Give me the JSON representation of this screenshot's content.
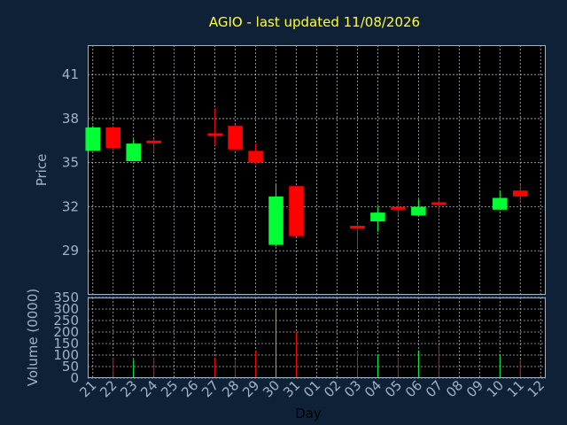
{
  "chart_data": {
    "type": "candlestick",
    "title": "AGIO - last updated 11/08/2026",
    "xlabel": "Day",
    "days": [
      "21",
      "22",
      "23",
      "24",
      "25",
      "26",
      "27",
      "28",
      "29",
      "30",
      "31",
      "01",
      "02",
      "03",
      "04",
      "05",
      "06",
      "07",
      "08",
      "09",
      "10",
      "11",
      "12"
    ],
    "price": {
      "ylabel": "Price",
      "ylim": [
        26.0,
        43.0
      ],
      "yticks": [
        29,
        32,
        35,
        38,
        41
      ],
      "grid": true
    },
    "volume": {
      "ylabel": "Volume (0000)",
      "ylim": [
        0,
        350
      ],
      "yticks": [
        0,
        50,
        100,
        150,
        200,
        250,
        300,
        350
      ],
      "grid": true
    },
    "colors": {
      "up": "#00ff33",
      "down": "#ff0000",
      "background": "#0f2136",
      "plot": "#000000",
      "title": "#ffff33"
    },
    "candles": [
      {
        "day": "21",
        "open": 35.8,
        "high": 37.5,
        "low": 35.8,
        "close": 37.4,
        "volume": 0
      },
      {
        "day": "22",
        "open": 37.4,
        "high": 37.5,
        "low": 35.8,
        "close": 36.0,
        "volume": 90
      },
      {
        "day": "23",
        "open": 35.1,
        "high": 36.6,
        "low": 35.1,
        "close": 36.3,
        "volume": 80
      },
      {
        "day": "24",
        "open": 36.5,
        "high": 36.6,
        "low": 35.7,
        "close": 36.4,
        "volume": 90
      },
      {
        "day": "27",
        "open": 37.0,
        "high": 38.7,
        "low": 36.2,
        "close": 36.9,
        "volume": 90
      },
      {
        "day": "28",
        "open": 37.5,
        "high": 37.6,
        "low": 35.9,
        "close": 35.9,
        "volume": 80
      },
      {
        "day": "29",
        "open": 35.8,
        "high": 36.3,
        "low": 34.9,
        "close": 35.0,
        "volume": 120
      },
      {
        "day": "30",
        "open": 29.4,
        "high": 33.5,
        "low": 29.3,
        "close": 32.7,
        "volume": 300
      },
      {
        "day": "31",
        "open": 33.4,
        "high": 33.4,
        "low": 30.0,
        "close": 30.0,
        "volume": 200
      },
      {
        "day": "03",
        "open": 30.7,
        "high": 30.9,
        "low": 29.2,
        "close": 30.5,
        "volume": 120
      },
      {
        "day": "04",
        "open": 31.0,
        "high": 32.0,
        "low": 30.3,
        "close": 31.6,
        "volume": 100
      },
      {
        "day": "05",
        "open": 32.0,
        "high": 32.2,
        "low": 31.4,
        "close": 31.8,
        "volume": 90
      },
      {
        "day": "06",
        "open": 31.4,
        "high": 32.5,
        "low": 31.4,
        "close": 32.0,
        "volume": 120
      },
      {
        "day": "07",
        "open": 32.3,
        "high": 32.5,
        "low": 31.6,
        "close": 32.2,
        "volume": 140
      },
      {
        "day": "10",
        "open": 31.8,
        "high": 33.1,
        "low": 31.8,
        "close": 32.6,
        "volume": 100
      },
      {
        "day": "11",
        "open": 33.1,
        "high": 33.5,
        "low": 32.3,
        "close": 32.7,
        "volume": 80
      }
    ]
  }
}
